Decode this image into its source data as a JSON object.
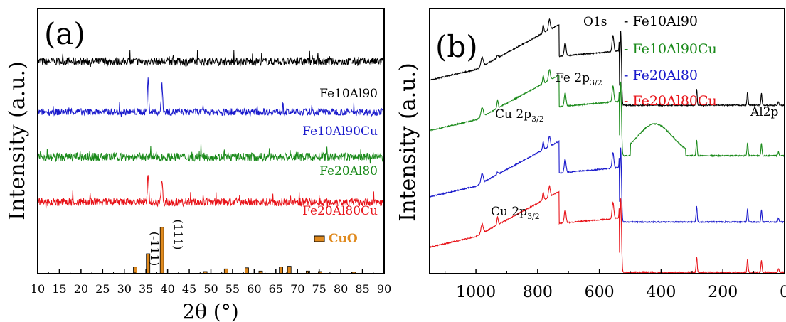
{
  "chart_data": [
    {
      "type": "line",
      "panel_label": "(a)",
      "xlabel": "2θ (°)",
      "ylabel": "Intensity (a.u.)",
      "xlim": [
        10,
        90
      ],
      "xticks": [
        10,
        15,
        20,
        25,
        30,
        35,
        40,
        45,
        50,
        55,
        60,
        65,
        70,
        75,
        80,
        85,
        90
      ],
      "grid": false,
      "series": [
        {
          "name": "Fe10Al90",
          "color": "#000000",
          "baseline": 0.8,
          "noise": 0.03,
          "peaks": []
        },
        {
          "name": "Fe10Al90Cu",
          "color": "#1a1acc",
          "baseline": 0.61,
          "noise": 0.026,
          "peaks": [
            [
              35.5,
              0.12
            ],
            [
              38.7,
              0.11
            ]
          ]
        },
        {
          "name": "Fe20Al80",
          "color": "#1a8a1a",
          "baseline": 0.44,
          "noise": 0.032,
          "peaks": []
        },
        {
          "name": "Fe20Al80Cu",
          "color": "#e8141a",
          "baseline": 0.27,
          "noise": 0.03,
          "peaks": [
            [
              35.5,
              0.1
            ],
            [
              38.7,
              0.09
            ]
          ]
        }
      ],
      "reference": {
        "name": "CuO",
        "color": "#e08a1e",
        "bars": [
          [
            32.5,
            0.025
          ],
          [
            35.5,
            0.075
          ],
          [
            38.7,
            0.175
          ],
          [
            48.7,
            0.008
          ],
          [
            53.5,
            0.018
          ],
          [
            58.3,
            0.022
          ],
          [
            61.5,
            0.01
          ],
          [
            66.2,
            0.025
          ],
          [
            68.1,
            0.028
          ],
          [
            72.4,
            0.01
          ],
          [
            75.2,
            0.008
          ],
          [
            83.0,
            0.006
          ]
        ],
        "labels": [
          {
            "text": "(-111)",
            "x": 35.5
          },
          {
            "text": "(111)",
            "x": 38.7
          }
        ]
      }
    },
    {
      "type": "line",
      "panel_label": "(b)",
      "ylabel": "Intensity (a.u.)",
      "xlim": [
        1150,
        0
      ],
      "xticks": [
        1000,
        800,
        600,
        400,
        200,
        0
      ],
      "grid": false,
      "legend": "top-right",
      "series": [
        {
          "name": "Fe10Al90",
          "color": "#000000",
          "offset": 0.63
        },
        {
          "name": "Fe10Al90Cu",
          "color": "#1a8a1a",
          "offset": 0.44
        },
        {
          "name": "Fe20Al80",
          "color": "#1a1acc",
          "offset": 0.19
        },
        {
          "name": "Fe20Al80Cu",
          "color": "#e8141a",
          "offset": 0.0
        }
      ],
      "annotations": [
        {
          "text": "O1s",
          "x": 531
        },
        {
          "text": "Fe 2p",
          "sub": "3/2",
          "x": 711
        },
        {
          "text": "Cu 2p",
          "sub": "3/2",
          "x": 933
        },
        {
          "text": "Cu 2p",
          "sub": "3/2",
          "x": 933
        },
        {
          "text": "Al2p",
          "x": 74
        }
      ]
    }
  ]
}
